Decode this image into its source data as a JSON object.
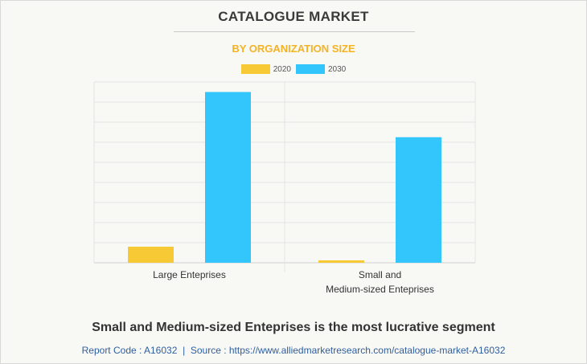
{
  "header": {
    "title": "CATALOGUE MARKET",
    "subtitle": "BY ORGANIZATION SIZE"
  },
  "legend": [
    {
      "label": "2020",
      "color": "#f7c934"
    },
    {
      "label": "2030",
      "color": "#33c6fd"
    }
  ],
  "chart_data": {
    "type": "bar",
    "categories": [
      "Large Enteprises",
      "Small and\nMedium-sized Enteprises"
    ],
    "series": [
      {
        "name": "2020",
        "values": [
          0.8,
          0.12
        ],
        "color": "#f7c934"
      },
      {
        "name": "2030",
        "values": [
          8.5,
          6.25
        ],
        "color": "#33c6fd"
      }
    ],
    "ylim": [
      0,
      9
    ],
    "grid": true,
    "legend_position": "top-center",
    "xlabel": "",
    "ylabel": ""
  },
  "conclusion": "Small and Medium-sized Enteprises is the most lucrative segment",
  "footer": {
    "report_code_label": "Report Code : A16032",
    "separator": "|",
    "source_label": "Source : https://www.alliedmarketresearch.com/catalogue-market-A16032"
  }
}
